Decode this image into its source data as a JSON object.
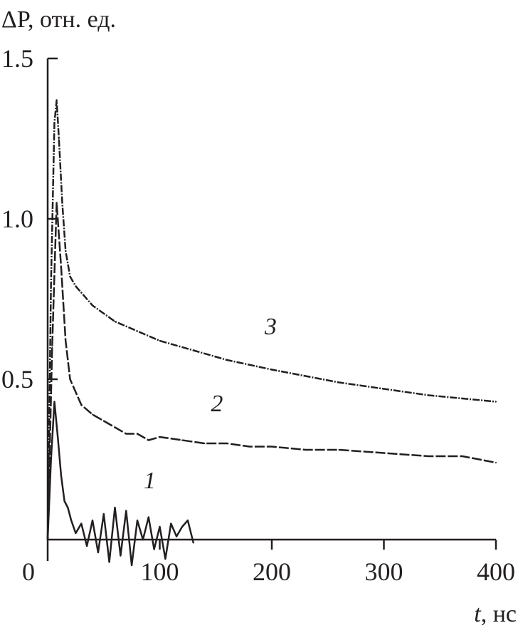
{
  "chart_data": {
    "type": "line",
    "ylabel": "ΔP, отн. ед.",
    "xlabel_var": "t",
    "xlabel_unit": ", нс",
    "xlim": [
      0,
      400
    ],
    "ylim": [
      0,
      1.5
    ],
    "xticks": [
      100,
      200,
      300,
      400
    ],
    "xtick_labels": [
      "0",
      "100",
      "200",
      "300",
      "400"
    ],
    "yticks": [
      0.5,
      1.0,
      1.5
    ],
    "ytick_labels": [
      "0.5",
      "1.0",
      "1.5"
    ],
    "grid": false,
    "line_color": "#231f20",
    "series": [
      {
        "name": "1",
        "label_at": [
          91,
          0.16
        ],
        "x": [
          0,
          3,
          6,
          9,
          12,
          15,
          18,
          21,
          25,
          30,
          35,
          40,
          45,
          50,
          55,
          60,
          65,
          70,
          75,
          80,
          85,
          90,
          95,
          100,
          105,
          110,
          115,
          120,
          125,
          130
        ],
        "y": [
          0,
          0.25,
          0.43,
          0.32,
          0.2,
          0.12,
          0.1,
          0.06,
          0.02,
          0.05,
          -0.02,
          0.06,
          -0.04,
          0.08,
          -0.07,
          0.1,
          -0.05,
          0.09,
          -0.08,
          0.06,
          0.0,
          0.07,
          -0.03,
          0.04,
          -0.06,
          0.05,
          0.01,
          0.04,
          0.06,
          -0.01
        ]
      },
      {
        "name": "2",
        "label_at": [
          151,
          0.4
        ],
        "x": [
          0,
          4,
          8,
          12,
          16,
          20,
          25,
          30,
          40,
          50,
          60,
          70,
          80,
          90,
          100,
          120,
          140,
          160,
          180,
          200,
          230,
          260,
          300,
          340,
          370,
          400
        ],
        "y": [
          0,
          0.6,
          1.05,
          0.85,
          0.62,
          0.5,
          0.46,
          0.42,
          0.39,
          0.37,
          0.35,
          0.33,
          0.33,
          0.31,
          0.32,
          0.31,
          0.3,
          0.3,
          0.29,
          0.29,
          0.28,
          0.28,
          0.27,
          0.26,
          0.26,
          0.24
        ]
      },
      {
        "name": "3",
        "label_at": [
          199,
          0.64
        ],
        "x": [
          0,
          3,
          6,
          8,
          10,
          13,
          16,
          20,
          25,
          30,
          40,
          60,
          80,
          100,
          130,
          160,
          200,
          230,
          260,
          300,
          340,
          370,
          400
        ],
        "y": [
          0,
          0.8,
          1.3,
          1.37,
          1.25,
          1.05,
          0.9,
          0.82,
          0.79,
          0.77,
          0.73,
          0.68,
          0.65,
          0.62,
          0.59,
          0.56,
          0.53,
          0.51,
          0.49,
          0.47,
          0.45,
          0.44,
          0.43
        ]
      }
    ]
  }
}
